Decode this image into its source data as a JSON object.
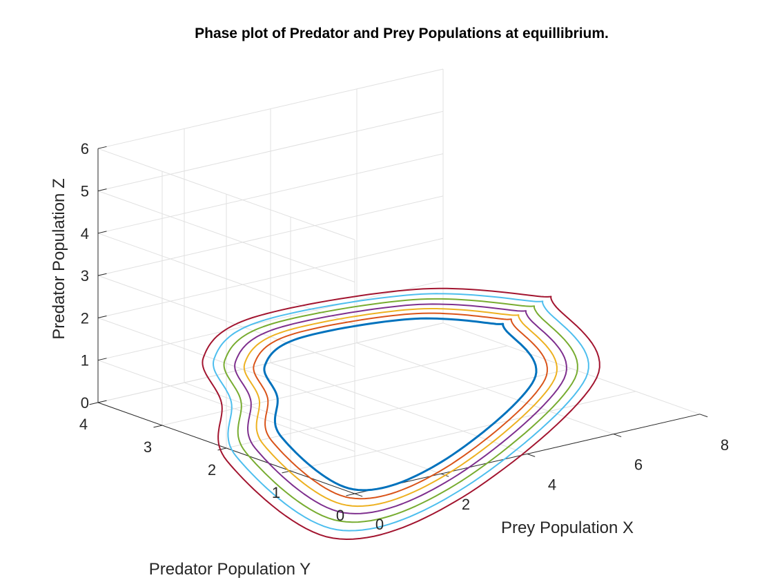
{
  "chart_data": {
    "type": "line3d",
    "title": "Phase plot of Predator and Prey Populations at equillibrium.",
    "xlabel": "Prey Population X",
    "ylabel": "Predator Population Y",
    "zlabel": "Predator Population Z",
    "xlim": [
      0,
      8
    ],
    "ylim": [
      0,
      4
    ],
    "zlim": [
      0,
      6
    ],
    "xticks": [
      "0",
      "2",
      "4",
      "6",
      "8"
    ],
    "yticks": [
      "0",
      "1",
      "2",
      "3",
      "4"
    ],
    "zticks": [
      "0",
      "1",
      "2",
      "3",
      "4",
      "5",
      "6"
    ],
    "grid": true,
    "series": [
      {
        "color": "#0072BD",
        "scale": 1.0
      },
      {
        "color": "#D95319",
        "scale": 1.08
      },
      {
        "color": "#EDB120",
        "scale": 1.15
      },
      {
        "color": "#7E2F8E",
        "scale": 1.22
      },
      {
        "color": "#77AC30",
        "scale": 1.3
      },
      {
        "color": "#4DBEEE",
        "scale": 1.38
      },
      {
        "color": "#A2142F",
        "scale": 1.46
      }
    ]
  }
}
